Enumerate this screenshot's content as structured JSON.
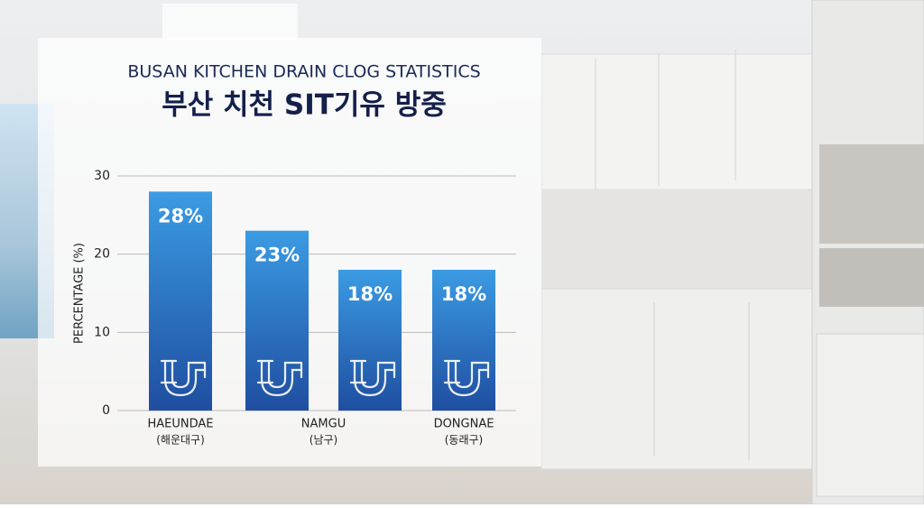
{
  "chart_data": {
    "type": "bar",
    "title": "BUSAN KITCHEN DRAIN CLOG STATISTICS",
    "subtitle": "부산 치천 SIT기유 방중",
    "y_label": "PERCENTAGE (%)",
    "categories": [
      "HAEUNDAE",
      "NAMGU",
      null,
      "DONGNAE"
    ],
    "category_sublabels": [
      "(해운대구)",
      "(남구)",
      null,
      "(동래구)"
    ],
    "values": [
      28,
      23,
      18,
      18
    ],
    "value_labels": [
      "28%",
      "23%",
      "18%",
      "18%"
    ],
    "color": [
      "#3b9be3",
      "#1f4ea0"
    ],
    "ylim": [
      0,
      30
    ],
    "yticks": [
      0,
      10,
      20,
      30
    ],
    "grid": true
  }
}
